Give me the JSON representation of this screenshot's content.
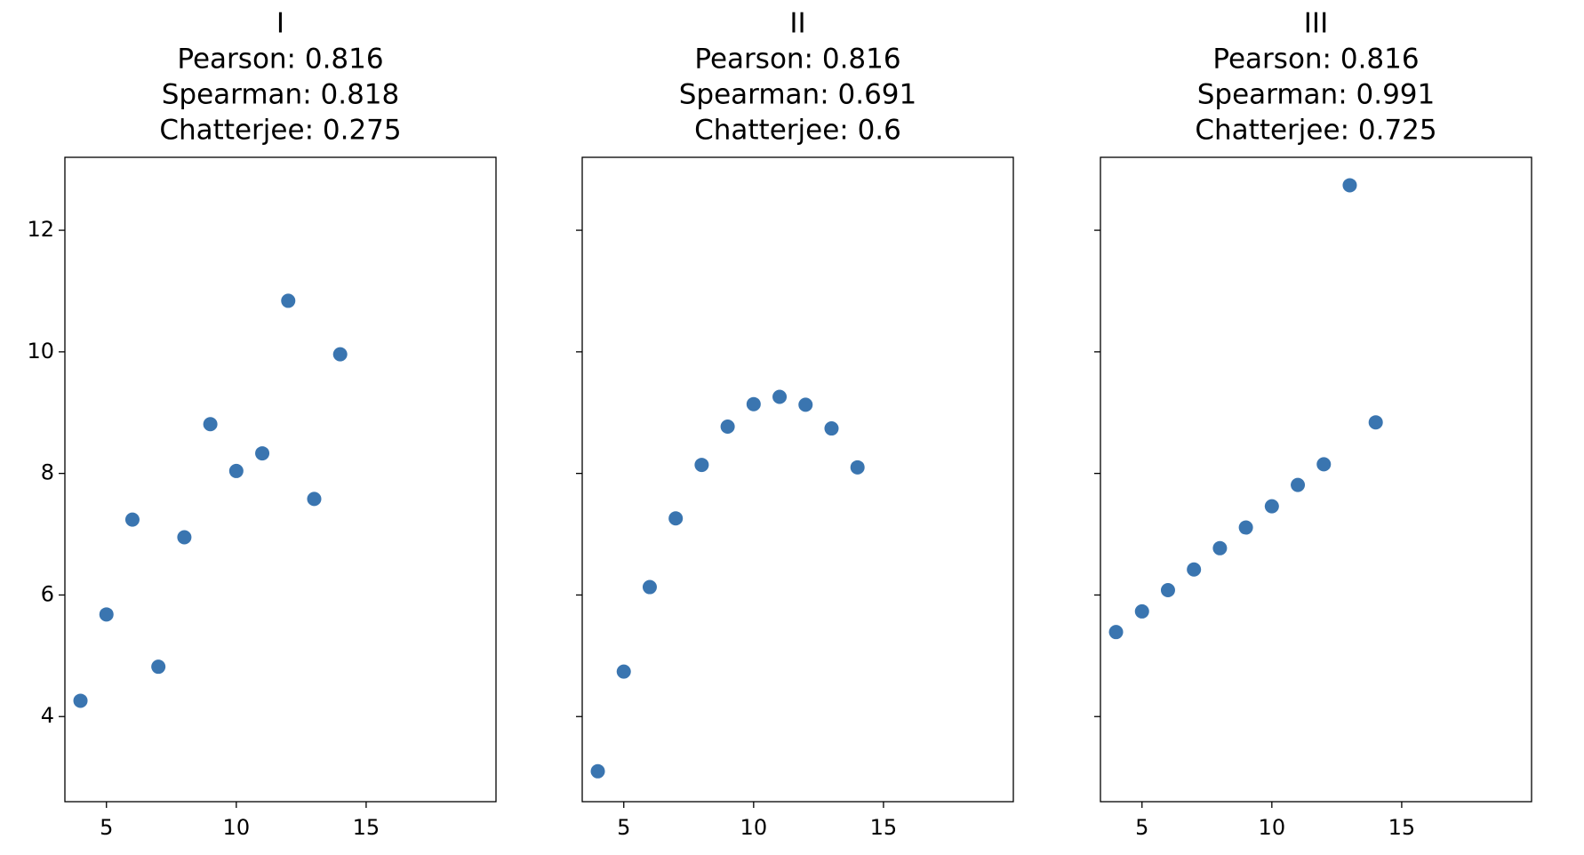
{
  "chart_data": [
    {
      "type": "scatter",
      "title": [
        "I",
        "Pearson: 0.816",
        "Spearman: 0.818",
        "Chatterjee: 0.275"
      ],
      "x": [
        10,
        8,
        13,
        9,
        11,
        14,
        6,
        4,
        12,
        7,
        5
      ],
      "y": [
        8.04,
        6.95,
        7.58,
        8.81,
        8.33,
        9.96,
        7.24,
        4.26,
        10.84,
        4.82,
        5.68
      ],
      "xlim": [
        3.4,
        20
      ],
      "ylim": [
        2.6,
        13.2
      ],
      "xticks": [
        5,
        10,
        15
      ],
      "yticks": [
        4,
        6,
        8,
        10,
        12
      ],
      "show_ytick_labels": true,
      "grid": false,
      "marker_color": "#3a75b0"
    },
    {
      "type": "scatter",
      "title": [
        "II",
        "Pearson: 0.816",
        "Spearman: 0.691",
        "Chatterjee: 0.6"
      ],
      "x": [
        10,
        8,
        13,
        9,
        11,
        14,
        6,
        4,
        12,
        7,
        5
      ],
      "y": [
        9.14,
        8.14,
        8.74,
        8.77,
        9.26,
        8.1,
        6.13,
        3.1,
        9.13,
        7.26,
        4.74
      ],
      "xlim": [
        3.4,
        20
      ],
      "ylim": [
        2.6,
        13.2
      ],
      "xticks": [
        5,
        10,
        15
      ],
      "yticks": [
        4,
        6,
        8,
        10,
        12
      ],
      "show_ytick_labels": false,
      "grid": false,
      "marker_color": "#3a75b0"
    },
    {
      "type": "scatter",
      "title": [
        "III",
        "Pearson: 0.816",
        "Spearman: 0.991",
        "Chatterjee: 0.725"
      ],
      "x": [
        10,
        8,
        13,
        9,
        11,
        14,
        6,
        4,
        12,
        7,
        5
      ],
      "y": [
        7.46,
        6.77,
        12.74,
        7.11,
        7.81,
        8.84,
        6.08,
        5.39,
        8.15,
        6.42,
        5.73
      ],
      "xlim": [
        3.4,
        20
      ],
      "ylim": [
        2.6,
        13.2
      ],
      "xticks": [
        5,
        10,
        15
      ],
      "yticks": [
        4,
        6,
        8,
        10,
        12
      ],
      "show_ytick_labels": false,
      "grid": false,
      "marker_color": "#3a75b0"
    }
  ]
}
